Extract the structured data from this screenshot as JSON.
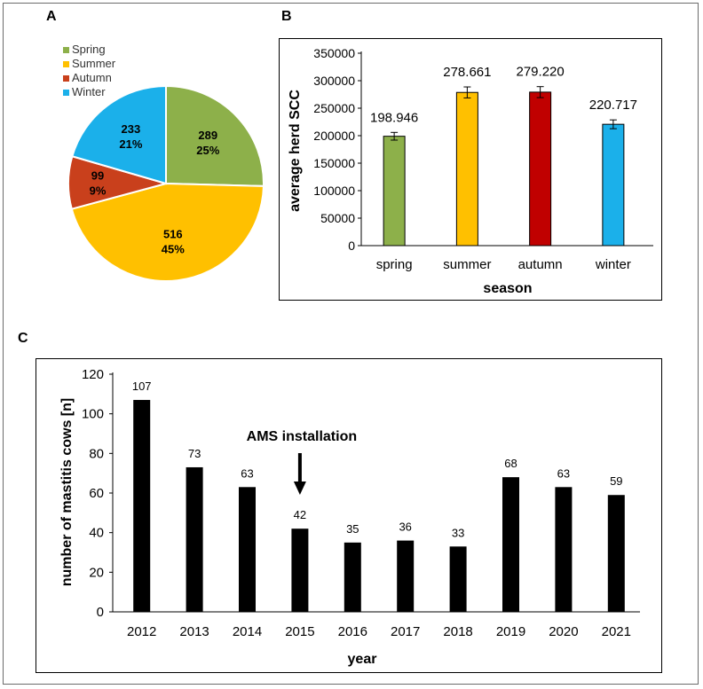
{
  "panels": {
    "a": "A",
    "b": "B",
    "c": "C"
  },
  "chart_data": [
    {
      "id": "A",
      "type": "pie",
      "title": "",
      "legend": [
        "Spring",
        "Summer",
        "Autumn",
        "Winter"
      ],
      "legend_position": "top-left",
      "slices": [
        {
          "label": "Spring",
          "value": 289,
          "percent": "25%",
          "value_text": "289",
          "color": "#8db04a"
        },
        {
          "label": "Summer",
          "value": 516,
          "percent": "45%",
          "value_text": "516",
          "color": "#ffc000"
        },
        {
          "label": "Autumn",
          "value": 99,
          "percent": "9%",
          "value_text": "99",
          "color": "#c9401c"
        },
        {
          "label": "Winter",
          "value": 233,
          "percent": "21%",
          "value_text": "233",
          "color": "#1bb0ea"
        }
      ]
    },
    {
      "id": "B",
      "type": "bar",
      "categories": [
        "spring",
        "summer",
        "autumn",
        "winter"
      ],
      "values": [
        198946,
        278661,
        279220,
        220717
      ],
      "value_labels": [
        "198.946",
        "278.661",
        "279.220",
        "220.717"
      ],
      "errors": [
        7000,
        10000,
        10000,
        8000
      ],
      "colors": [
        "#8db04a",
        "#ffc000",
        "#c00000",
        "#1bb0ea"
      ],
      "xlabel": "season",
      "ylabel": "average herd SCC",
      "ylim": [
        0,
        350000
      ],
      "yticks": [
        "0",
        "50000",
        "100000",
        "150000",
        "200000",
        "250000",
        "300000",
        "350000"
      ],
      "ytick_values": [
        0,
        50000,
        100000,
        150000,
        200000,
        250000,
        300000,
        350000
      ],
      "grid": false
    },
    {
      "id": "C",
      "type": "bar",
      "categories": [
        "2012",
        "2013",
        "2014",
        "2015",
        "2016",
        "2017",
        "2018",
        "2019",
        "2020",
        "2021"
      ],
      "values": [
        107,
        73,
        63,
        42,
        35,
        36,
        33,
        68,
        63,
        59
      ],
      "value_labels": [
        "107",
        "73",
        "63",
        "42",
        "35",
        "36",
        "33",
        "68",
        "63",
        "59"
      ],
      "color": "#000000",
      "xlabel": "year",
      "ylabel": "number of mastitis cows [n]",
      "ylim": [
        0,
        120
      ],
      "yticks": [
        "0",
        "20",
        "40",
        "60",
        "80",
        "100",
        "120"
      ],
      "ytick_values": [
        0,
        20,
        40,
        60,
        80,
        100,
        120
      ],
      "annotation": {
        "text": "AMS installation",
        "target_category": "2015"
      },
      "grid": false
    }
  ]
}
